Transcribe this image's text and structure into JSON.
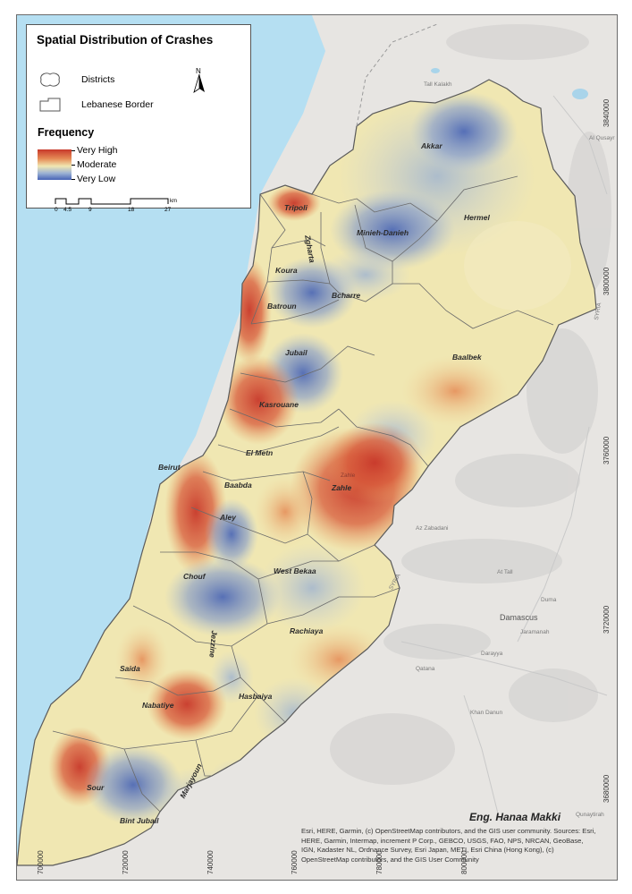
{
  "legend": {
    "title": "Spatial Distribution of Crashes",
    "items": [
      {
        "label": "Districts",
        "icon": "district-outline-icon"
      },
      {
        "label": "Lebanese Border",
        "icon": "border-outline-icon"
      }
    ],
    "north_label": "N",
    "frequency_title": "Frequency",
    "ramp": {
      "very_high": "Very High",
      "moderate": "Moderate",
      "very_low": "Very Low",
      "colors": [
        "#c8382a",
        "#e58a55",
        "#f0e7b2",
        "#9cb2d4",
        "#4663b6"
      ]
    },
    "scalebar": {
      "ticks": [
        "0",
        "4.5",
        "9",
        "18",
        "27"
      ],
      "unit": "km"
    }
  },
  "districts": [
    "Akkar",
    "Tripoli",
    "Minieh-Danieh",
    "Hermel",
    "Zgharta",
    "Koura",
    "Bcharre",
    "Batroun",
    "Jubail",
    "Baalbek",
    "Kasrouane",
    "El Metn",
    "Beirut",
    "Baabda",
    "Zahle",
    "Aley",
    "Chouf",
    "West Bekaa",
    "Rachiaya",
    "Jezzine",
    "Saida",
    "Nabatiye",
    "Hasbaiya",
    "Sour",
    "Marjayoun",
    "Bint Jubail"
  ],
  "basemap_labels": [
    "Tall Kalakh",
    "Al Qusayr",
    "SYRIA",
    "SYRIA",
    "Az Zabadani",
    "At Tall",
    "Duma",
    "Damascus",
    "Jaramanah",
    "Darayya",
    "Qatana",
    "Khan Danun",
    "Qunaytirah",
    "Zahle"
  ],
  "graticule": {
    "lat_ticks": [
      "3840000",
      "3800000",
      "3760000",
      "3720000",
      "3680000"
    ],
    "lon_ticks": [
      "700000",
      "720000",
      "740000",
      "760000",
      "780000",
      "800000"
    ]
  },
  "colors": {
    "sea": "#b5dff2",
    "very_high": "#c8382a",
    "moderate": "#f0e7b2",
    "very_low": "#4663b6"
  },
  "author": "Eng. Hanaa Makki",
  "attribution": "Esri, HERE, Garmin, (c) OpenStreetMap contributors, and the GIS user community. Sources: Esri, HERE, Garmin, Intermap, increment P Corp., GEBCO, USGS, FAO, NPS, NRCAN, GeoBase, IGN, Kadaster NL, Ordnance Survey, Esri Japan, METI, Esri China (Hong Kong), (c) OpenStreetMap contributors, and the GIS User Community"
}
